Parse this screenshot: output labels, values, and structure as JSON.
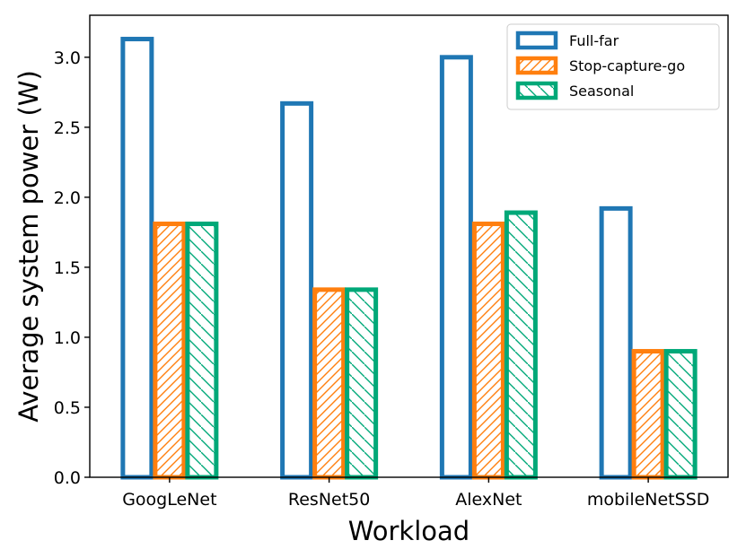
{
  "chart_data": {
    "type": "bar",
    "xlabel": "Workload",
    "ylabel": "Average system power (W)",
    "categories": [
      "GoogLeNet",
      "ResNet50",
      "AlexNet",
      "mobileNetSSD"
    ],
    "ylim": [
      0,
      3.3
    ],
    "yticks": [
      "0.0",
      "0.5",
      "1.0",
      "1.5",
      "2.0",
      "2.5",
      "3.0"
    ],
    "grid": false,
    "legend_position": "top-right",
    "series": [
      {
        "name": "Full-far",
        "values": [
          3.13,
          2.67,
          3.0,
          1.92
        ],
        "color": "#1f77b4",
        "pattern": "none"
      },
      {
        "name": "Stop-capture-go",
        "values": [
          1.81,
          1.34,
          1.81,
          0.9
        ],
        "color": "#ff7f0e",
        "pattern": "diagonal-forward"
      },
      {
        "name": "Seasonal",
        "values": [
          1.81,
          1.34,
          1.89,
          0.9
        ],
        "color": "#00a878",
        "pattern": "diagonal-backward"
      }
    ]
  }
}
